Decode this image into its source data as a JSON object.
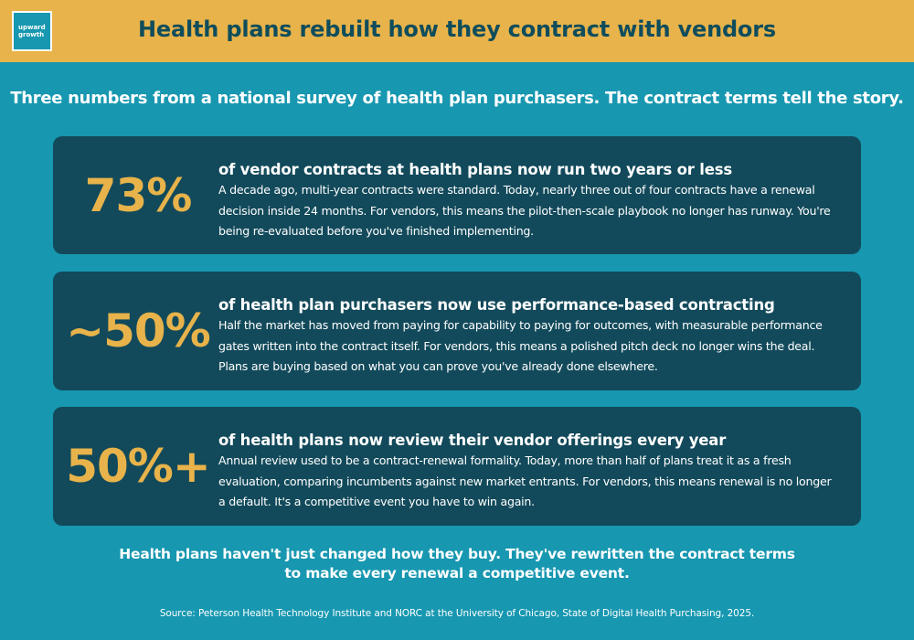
{
  "header": {
    "logo_line1": "upward",
    "logo_line2": "growth",
    "title": "Health plans rebuilt how they contract with vendors"
  },
  "subtitle": "Three numbers from a national survey of health plan purchasers. The contract terms tell the story.",
  "stats": [
    {
      "value": "73%",
      "heading": "of vendor contracts at health plans now run two years or less",
      "text": "A decade ago, multi-year contracts were standard. Today, nearly three out of four contracts have a renewal decision inside 24 months. For vendors, this means the pilot-then-scale playbook no longer has runway. You're being re-evaluated before you've finished implementing."
    },
    {
      "value": "~50%",
      "heading": "of health plan purchasers now use performance-based contracting",
      "text": "Half the market has moved from paying for capability to paying for outcomes, with measurable performance gates written into the contract itself. For vendors, this means a polished pitch deck no longer wins the deal. Plans are buying based on what you can prove you've already done elsewhere."
    },
    {
      "value": "50%+",
      "heading": "of health plans now review their vendor offerings every year",
      "text": "Annual review used to be a contract-renewal formality. Today, more than half of plans treat it as a fresh evaluation, comparing incumbents against new market entrants. For vendors, this means renewal is no longer a default. It's a competitive event you have to win again."
    }
  ],
  "conclusion_line1": "Health plans haven't just changed how they buy. They've rewritten the contract terms",
  "conclusion_line2": "to make every renewal a competitive event.",
  "source": "Source: Peterson Health Technology Institute and NORC at the University of Chicago, State of Digital Health Purchasing, 2025.",
  "colors": {
    "background": "#1797b0",
    "header": "#e7b34a",
    "card": "#124a5b",
    "accent": "#e7b34a",
    "title": "#0f4d5c"
  }
}
